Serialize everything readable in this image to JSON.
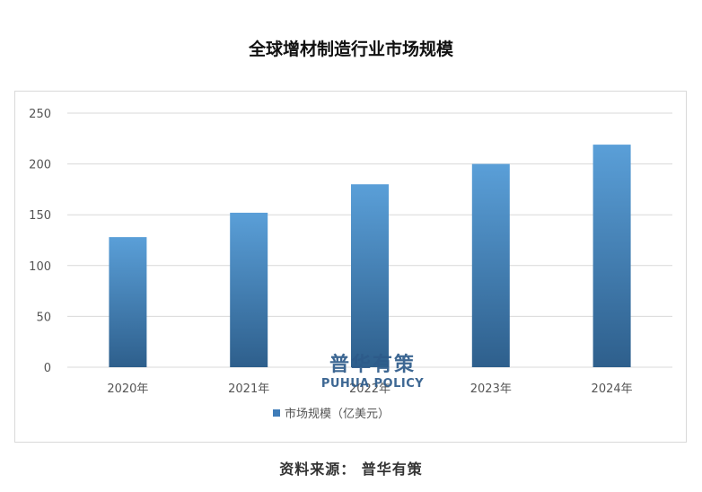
{
  "title": "全球增材制造行业市场规模",
  "source": "资料来源： 普华有策",
  "watermark": {
    "cn": "普华有策",
    "en": "PUHUA POLICY"
  },
  "colors": {
    "bar_top": "#5a9fd8",
    "bar_bottom": "#2e5f8c",
    "grid": "#d9d9d9",
    "axis_text": "#555555",
    "legend": "#3f7cb8"
  },
  "chart_data": {
    "type": "bar",
    "title": "全球增材制造行业市场规模",
    "categories": [
      "2020年",
      "2021年",
      "2022年",
      "2023年",
      "2024年"
    ],
    "series": [
      {
        "name": "市场规模（亿美元）",
        "values": [
          128,
          152,
          180,
          200,
          219
        ]
      }
    ],
    "yticks": [
      0,
      50,
      100,
      150,
      200,
      250
    ],
    "ylim": [
      0,
      250
    ],
    "grid": true,
    "legend": "bottom"
  }
}
